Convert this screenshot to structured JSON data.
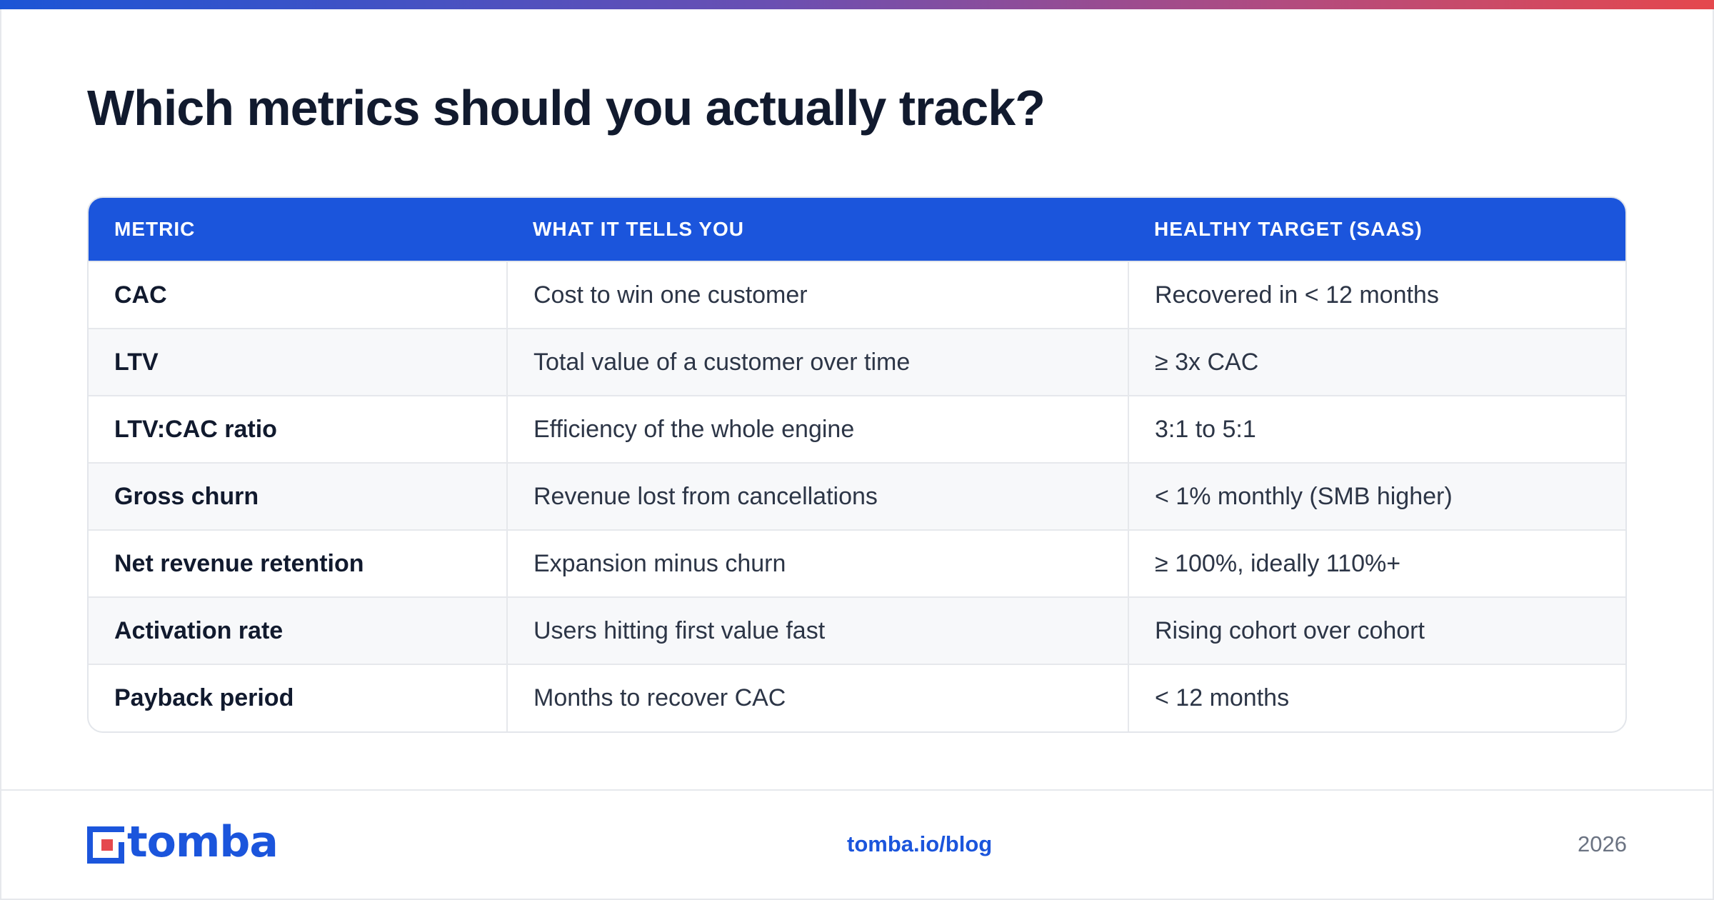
{
  "title": "Which metrics should you actually track?",
  "table": {
    "headers": [
      "METRIC",
      "WHAT IT TELLS YOU",
      "HEALTHY TARGET (SAAS)"
    ],
    "rows": [
      [
        "CAC",
        "Cost to win one customer",
        "Recovered in < 12 months"
      ],
      [
        "LTV",
        "Total value of a customer over time",
        "≥ 3x CAC"
      ],
      [
        "LTV:CAC ratio",
        "Efficiency of the whole engine",
        "3:1 to 5:1"
      ],
      [
        "Gross churn",
        "Revenue lost from cancellations",
        "< 1% monthly (SMB higher)"
      ],
      [
        "Net revenue retention",
        "Expansion minus churn",
        "≥ 100%, ideally 110%+"
      ],
      [
        "Activation rate",
        "Users hitting first value fast",
        "Rising cohort over cohort"
      ],
      [
        "Payback period",
        "Months to recover CAC",
        "< 12 months"
      ]
    ]
  },
  "footer": {
    "brand": "tomba",
    "link": "tomba.io/blog",
    "year": "2026"
  },
  "colors": {
    "accent": "#1b55dc",
    "logo_red": "#e5484d",
    "title": "#111a2e"
  }
}
